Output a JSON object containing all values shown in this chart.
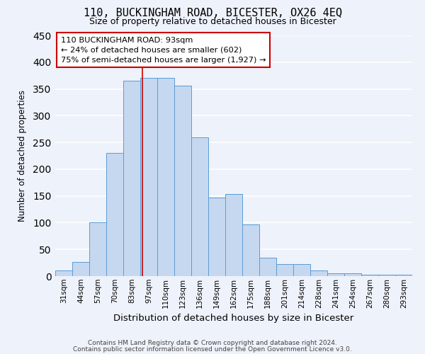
{
  "title": "110, BUCKINGHAM ROAD, BICESTER, OX26 4EQ",
  "subtitle": "Size of property relative to detached houses in Bicester",
  "xlabel": "Distribution of detached houses by size in Bicester",
  "ylabel": "Number of detached properties",
  "bar_labels": [
    "31sqm",
    "44sqm",
    "57sqm",
    "70sqm",
    "83sqm",
    "97sqm",
    "110sqm",
    "123sqm",
    "136sqm",
    "149sqm",
    "162sqm",
    "175sqm",
    "188sqm",
    "201sqm",
    "214sqm",
    "228sqm",
    "241sqm",
    "254sqm",
    "267sqm",
    "280sqm",
    "293sqm"
  ],
  "bar_values": [
    10,
    26,
    101,
    230,
    365,
    371,
    371,
    356,
    260,
    147,
    153,
    97,
    34,
    22,
    22,
    11,
    5,
    5,
    2,
    2,
    2
  ],
  "bar_color": "#c5d8f0",
  "bar_edge_color": "#5b9bd5",
  "ylim": [
    0,
    450
  ],
  "yticks": [
    0,
    50,
    100,
    150,
    200,
    250,
    300,
    350,
    400,
    450
  ],
  "vline_x_index": 4.62,
  "annotation_line1": "110 BUCKINGHAM ROAD: 93sqm",
  "annotation_line2": "← 24% of detached houses are smaller (602)",
  "annotation_line3": "75% of semi-detached houses are larger (1,927) →",
  "footer1": "Contains HM Land Registry data © Crown copyright and database right 2024.",
  "footer2": "Contains public sector information licensed under the Open Government Licence v3.0.",
  "bg_color": "#eef2fa",
  "grid_color": "#ffffff",
  "vline_color": "#cc0000"
}
